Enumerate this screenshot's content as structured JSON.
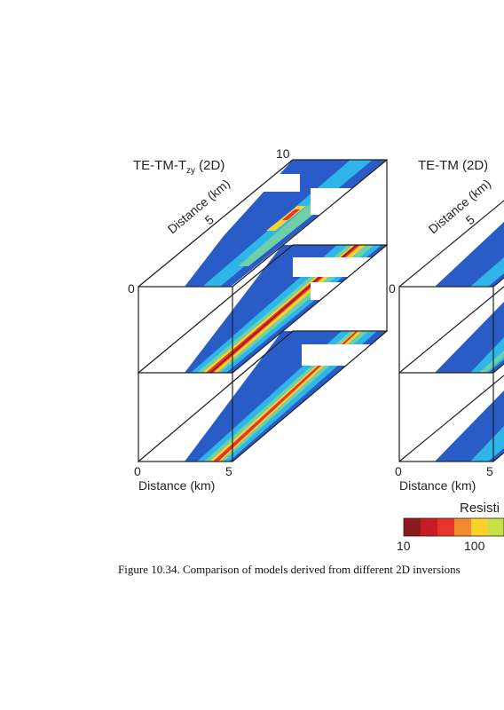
{
  "panels": [
    {
      "title_main": "TE-TM-T",
      "title_sub": "zy",
      "title_suffix": " (2D)",
      "axis_top_start": "0",
      "axis_top_mid": "5",
      "axis_top_end": "10",
      "axis_top_label": "Distance (km)",
      "axis_bottom_start": "0",
      "axis_bottom_end": "5",
      "axis_bottom_label": "Distance (km)"
    },
    {
      "title_main": "TE-TM (2D)",
      "axis_top_start": "0",
      "axis_top_mid": "5",
      "axis_top_label": "Distance (km)",
      "axis_bottom_start": "0",
      "axis_bottom_end": "5",
      "axis_bottom_label": "Distance (km)"
    }
  ],
  "colorbar": {
    "title": "Resisti",
    "tick_10": "10",
    "tick_100": "100",
    "colors": [
      "#8b1a1a",
      "#c41e24",
      "#e8352b",
      "#f28a2e",
      "#fbd22c",
      "#c8e04a"
    ]
  },
  "caption": "Figure 10.34.  Comparison of models derived from different 2D inversions"
}
